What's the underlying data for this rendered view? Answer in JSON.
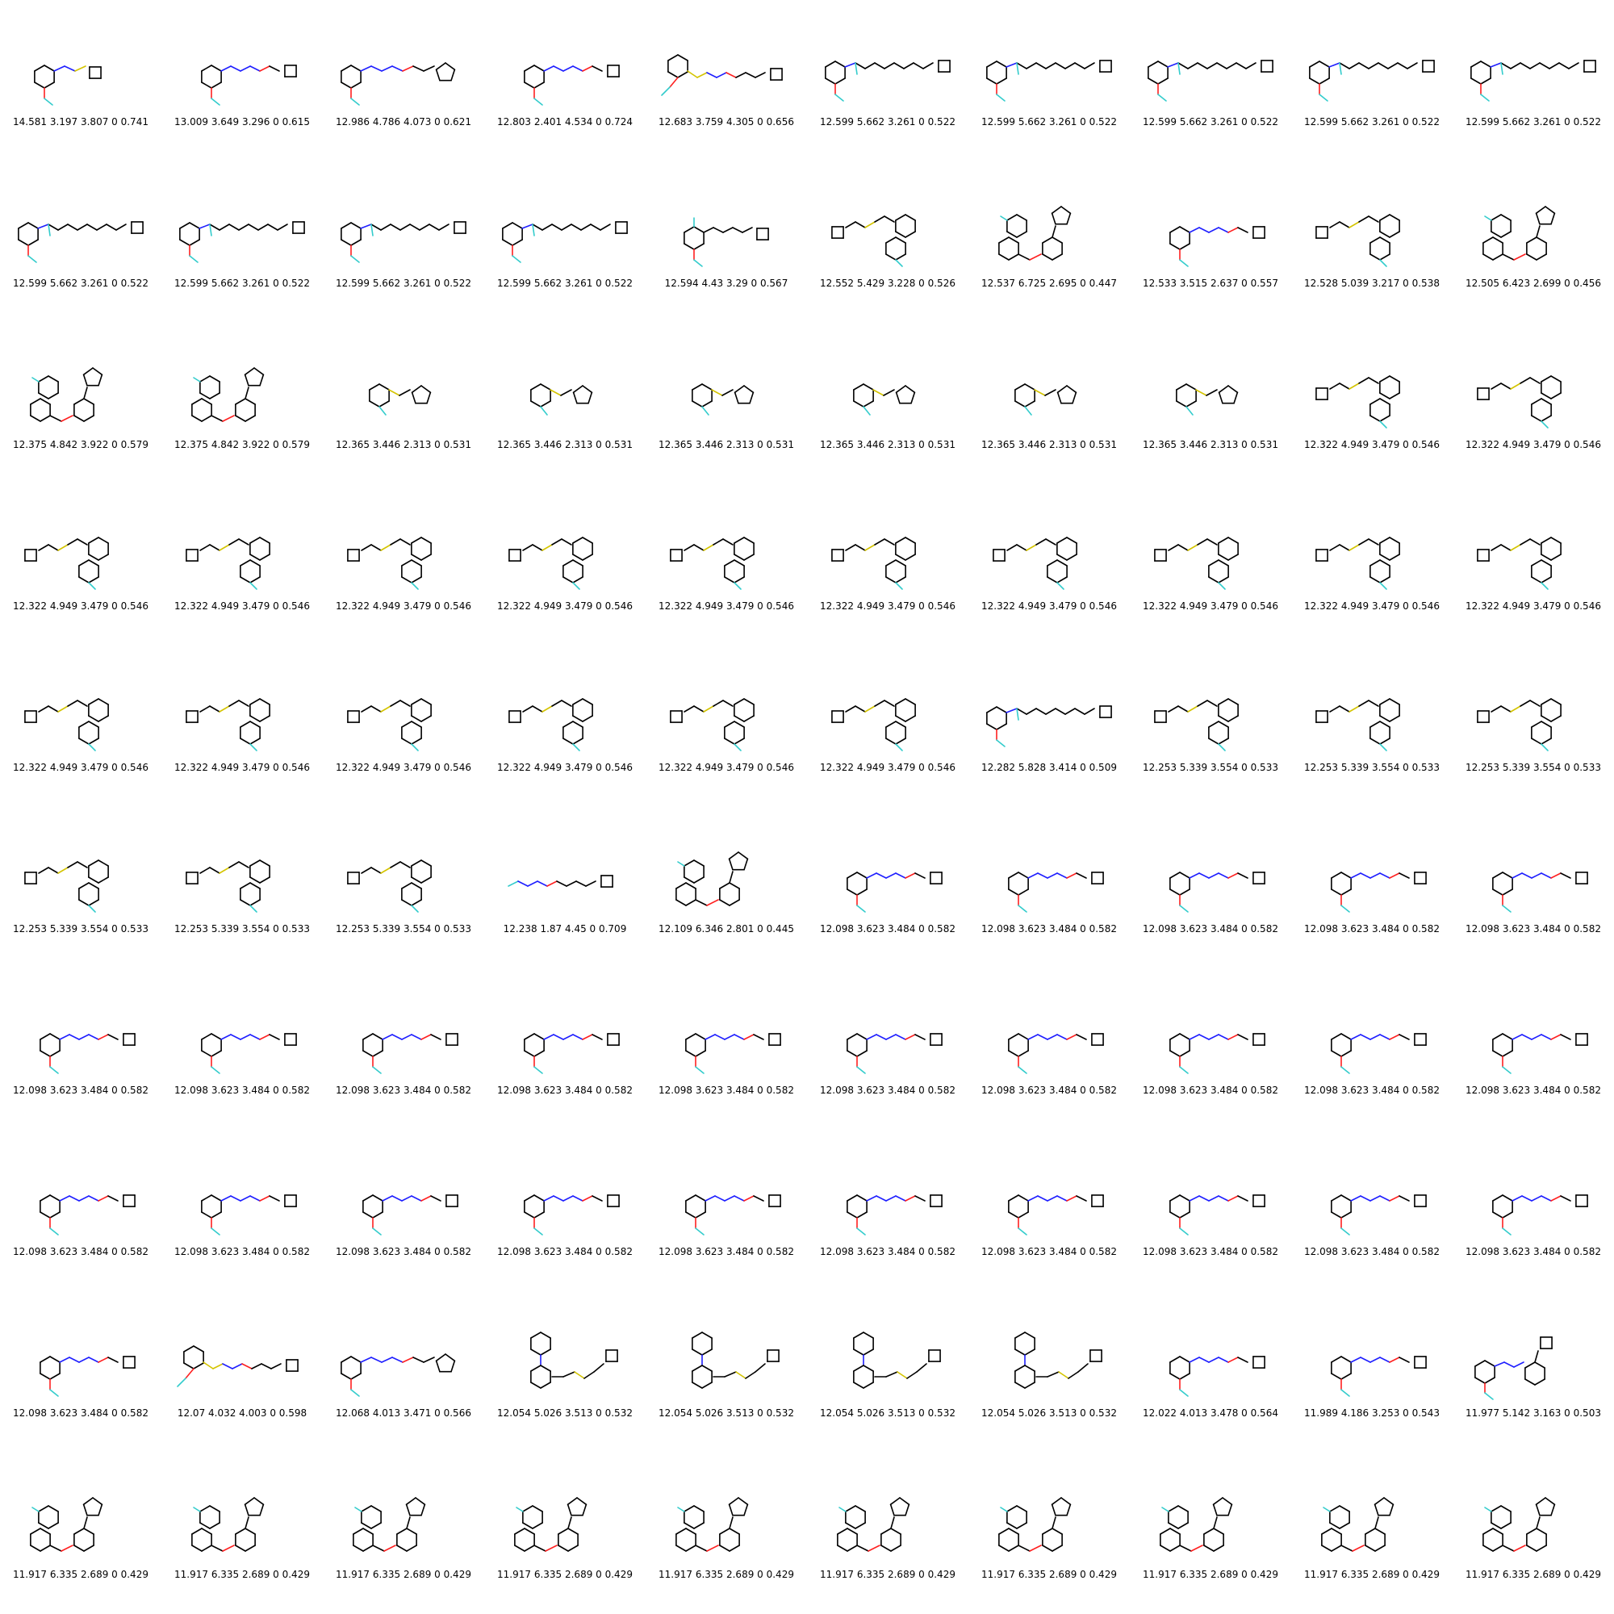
{
  "atom_colors": {
    "N": "#1f1fff",
    "S": "#d4c400",
    "F": "#33cccc",
    "O": "#ff2020",
    "C": "#000000"
  },
  "cells": [
    {
      "score": "14.581 3.197 3.807 0 0.741",
      "motif": "A2"
    },
    {
      "score": "13.009 3.649 3.296 0 0.615",
      "motif": "A1"
    },
    {
      "score": "12.986 4.786 4.073 0 0.621",
      "motif": "A3"
    },
    {
      "score": "12.803 2.401 4.534 0 0.724",
      "motif": "A1"
    },
    {
      "score": "12.683 3.759 4.305 0 0.656",
      "motif": "A4"
    },
    {
      "score": "12.599 5.662 3.261 0 0.522",
      "motif": "B"
    },
    {
      "score": "12.599 5.662 3.261 0 0.522",
      "motif": "B"
    },
    {
      "score": "12.599 5.662 3.261 0 0.522",
      "motif": "B"
    },
    {
      "score": "12.599 5.662 3.261 0 0.522",
      "motif": "B"
    },
    {
      "score": "12.599 5.662 3.261 0 0.522",
      "motif": "B"
    },
    {
      "score": "12.599 5.662 3.261 0 0.522",
      "motif": "B"
    },
    {
      "score": "12.599 5.662 3.261 0 0.522",
      "motif": "B"
    },
    {
      "score": "12.599 5.662 3.261 0 0.522",
      "motif": "B"
    },
    {
      "score": "12.599 5.662 3.261 0 0.522",
      "motif": "B"
    },
    {
      "score": "12.594 4.43 3.29 0 0.567",
      "motif": "E"
    },
    {
      "score": "12.552 5.429 3.228 0 0.526",
      "motif": "D"
    },
    {
      "score": "12.537 6.725 2.695 0 0.447",
      "motif": "F"
    },
    {
      "score": "12.533 3.515 2.637 0 0.557",
      "motif": "A1"
    },
    {
      "score": "12.528 5.039 3.217 0 0.538",
      "motif": "D"
    },
    {
      "score": "12.505 6.423 2.699 0 0.456",
      "motif": "F"
    },
    {
      "score": "12.375 4.842 3.922 0 0.579",
      "motif": "F"
    },
    {
      "score": "12.375 4.842 3.922 0 0.579",
      "motif": "F"
    },
    {
      "score": "12.365 3.446 2.313 0 0.531",
      "motif": "C"
    },
    {
      "score": "12.365 3.446 2.313 0 0.531",
      "motif": "C"
    },
    {
      "score": "12.365 3.446 2.313 0 0.531",
      "motif": "C"
    },
    {
      "score": "12.365 3.446 2.313 0 0.531",
      "motif": "C"
    },
    {
      "score": "12.365 3.446 2.313 0 0.531",
      "motif": "C"
    },
    {
      "score": "12.365 3.446 2.313 0 0.531",
      "motif": "C"
    },
    {
      "score": "12.322 4.949 3.479 0 0.546",
      "motif": "D"
    },
    {
      "score": "12.322 4.949 3.479 0 0.546",
      "motif": "D"
    },
    {
      "score": "12.322 4.949 3.479 0 0.546",
      "motif": "D"
    },
    {
      "score": "12.322 4.949 3.479 0 0.546",
      "motif": "D"
    },
    {
      "score": "12.322 4.949 3.479 0 0.546",
      "motif": "D"
    },
    {
      "score": "12.322 4.949 3.479 0 0.546",
      "motif": "D"
    },
    {
      "score": "12.322 4.949 3.479 0 0.546",
      "motif": "D"
    },
    {
      "score": "12.322 4.949 3.479 0 0.546",
      "motif": "D"
    },
    {
      "score": "12.322 4.949 3.479 0 0.546",
      "motif": "D"
    },
    {
      "score": "12.322 4.949 3.479 0 0.546",
      "motif": "D"
    },
    {
      "score": "12.322 4.949 3.479 0 0.546",
      "motif": "D"
    },
    {
      "score": "12.322 4.949 3.479 0 0.546",
      "motif": "D"
    },
    {
      "score": "12.322 4.949 3.479 0 0.546",
      "motif": "D"
    },
    {
      "score": "12.322 4.949 3.479 0 0.546",
      "motif": "D"
    },
    {
      "score": "12.322 4.949 3.479 0 0.546",
      "motif": "D"
    },
    {
      "score": "12.322 4.949 3.479 0 0.546",
      "motif": "D"
    },
    {
      "score": "12.322 4.949 3.479 0 0.546",
      "motif": "D"
    },
    {
      "score": "12.322 4.949 3.479 0 0.546",
      "motif": "D"
    },
    {
      "score": "12.282 5.828 3.414 0 0.509",
      "motif": "B"
    },
    {
      "score": "12.253 5.339 3.554 0 0.533",
      "motif": "D"
    },
    {
      "score": "12.253 5.339 3.554 0 0.533",
      "motif": "D"
    },
    {
      "score": "12.253 5.339 3.554 0 0.533",
      "motif": "D"
    },
    {
      "score": "12.253 5.339 3.554 0 0.533",
      "motif": "D"
    },
    {
      "score": "12.253 5.339 3.554 0 0.533",
      "motif": "D"
    },
    {
      "score": "12.253 5.339 3.554 0 0.533",
      "motif": "D"
    },
    {
      "score": "12.238 1.87 4.45 0 0.709",
      "motif": "G"
    },
    {
      "score": "12.109 6.346 2.801 0 0.445",
      "motif": "F"
    },
    {
      "score": "12.098 3.623 3.484 0 0.582",
      "motif": "A1"
    },
    {
      "score": "12.098 3.623 3.484 0 0.582",
      "motif": "A1"
    },
    {
      "score": "12.098 3.623 3.484 0 0.582",
      "motif": "A1"
    },
    {
      "score": "12.098 3.623 3.484 0 0.582",
      "motif": "A1"
    },
    {
      "score": "12.098 3.623 3.484 0 0.582",
      "motif": "A1"
    },
    {
      "score": "12.098 3.623 3.484 0 0.582",
      "motif": "A1"
    },
    {
      "score": "12.098 3.623 3.484 0 0.582",
      "motif": "A1"
    },
    {
      "score": "12.098 3.623 3.484 0 0.582",
      "motif": "A1"
    },
    {
      "score": "12.098 3.623 3.484 0 0.582",
      "motif": "A1"
    },
    {
      "score": "12.098 3.623 3.484 0 0.582",
      "motif": "A1"
    },
    {
      "score": "12.098 3.623 3.484 0 0.582",
      "motif": "A1"
    },
    {
      "score": "12.098 3.623 3.484 0 0.582",
      "motif": "A1"
    },
    {
      "score": "12.098 3.623 3.484 0 0.582",
      "motif": "A1"
    },
    {
      "score": "12.098 3.623 3.484 0 0.582",
      "motif": "A1"
    },
    {
      "score": "12.098 3.623 3.484 0 0.582",
      "motif": "A1"
    },
    {
      "score": "12.098 3.623 3.484 0 0.582",
      "motif": "A1"
    },
    {
      "score": "12.098 3.623 3.484 0 0.582",
      "motif": "A1"
    },
    {
      "score": "12.098 3.623 3.484 0 0.582",
      "motif": "A1"
    },
    {
      "score": "12.098 3.623 3.484 0 0.582",
      "motif": "A1"
    },
    {
      "score": "12.098 3.623 3.484 0 0.582",
      "motif": "A1"
    },
    {
      "score": "12.098 3.623 3.484 0 0.582",
      "motif": "A1"
    },
    {
      "score": "12.098 3.623 3.484 0 0.582",
      "motif": "A1"
    },
    {
      "score": "12.098 3.623 3.484 0 0.582",
      "motif": "A1"
    },
    {
      "score": "12.098 3.623 3.484 0 0.582",
      "motif": "A1"
    },
    {
      "score": "12.098 3.623 3.484 0 0.582",
      "motif": "A1"
    },
    {
      "score": "12.098 3.623 3.484 0 0.582",
      "motif": "A1"
    },
    {
      "score": "12.07 4.032 4.003 0 0.598",
      "motif": "A4"
    },
    {
      "score": "12.068 4.013 3.471 0 0.566",
      "motif": "A3"
    },
    {
      "score": "12.054 5.026 3.513 0 0.532",
      "motif": "H"
    },
    {
      "score": "12.054 5.026 3.513 0 0.532",
      "motif": "H"
    },
    {
      "score": "12.054 5.026 3.513 0 0.532",
      "motif": "H"
    },
    {
      "score": "12.054 5.026 3.513 0 0.532",
      "motif": "H"
    },
    {
      "score": "12.022 4.013 3.478 0 0.564",
      "motif": "A1"
    },
    {
      "score": "11.989 4.186 3.253 0 0.543",
      "motif": "A1"
    },
    {
      "score": "11.977 5.142 3.163 0 0.503",
      "motif": "I"
    },
    {
      "score": "11.917 6.335 2.689 0 0.429",
      "motif": "F"
    },
    {
      "score": "11.917 6.335 2.689 0 0.429",
      "motif": "F"
    },
    {
      "score": "11.917 6.335 2.689 0 0.429",
      "motif": "F"
    },
    {
      "score": "11.917 6.335 2.689 0 0.429",
      "motif": "F"
    },
    {
      "score": "11.917 6.335 2.689 0 0.429",
      "motif": "F"
    },
    {
      "score": "11.917 6.335 2.689 0 0.429",
      "motif": "F"
    },
    {
      "score": "11.917 6.335 2.689 0 0.429",
      "motif": "F"
    },
    {
      "score": "11.917 6.335 2.689 0 0.429",
      "motif": "F"
    },
    {
      "score": "11.917 6.335 2.689 0 0.429",
      "motif": "F"
    },
    {
      "score": "11.917 6.335 2.689 0 0.429",
      "motif": "F"
    }
  ]
}
